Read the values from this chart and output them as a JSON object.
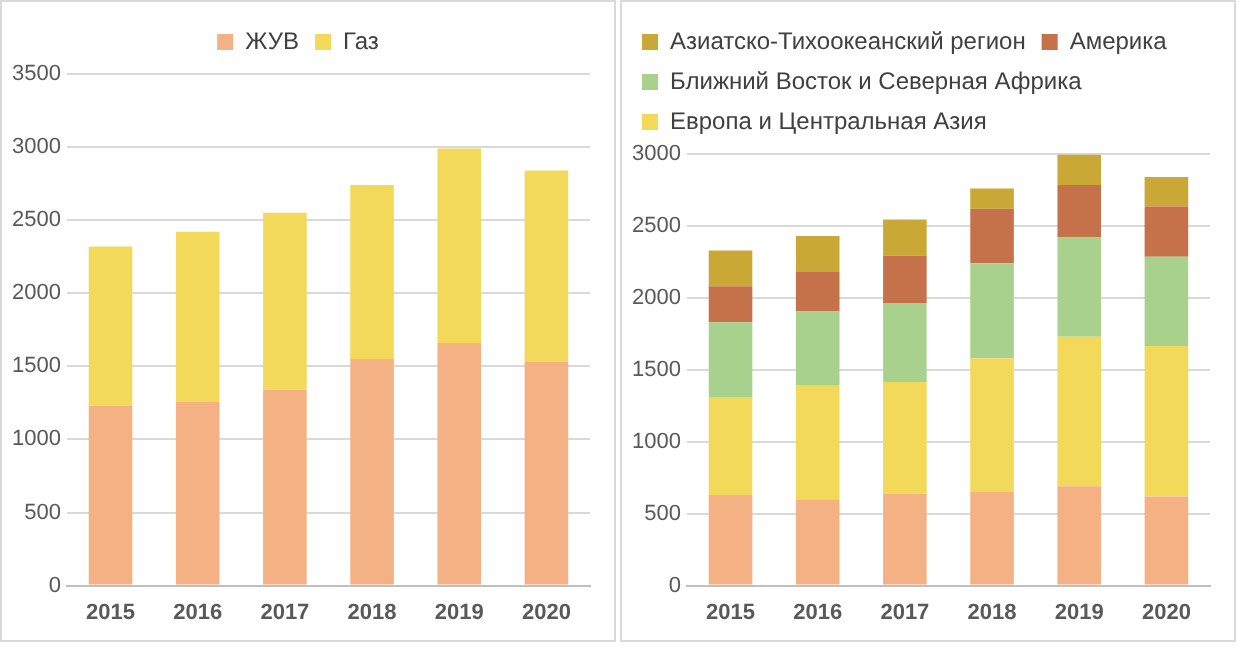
{
  "chart_data": [
    {
      "type": "bar",
      "stacked": true,
      "categories": [
        "2015",
        "2016",
        "2017",
        "2018",
        "2019",
        "2020"
      ],
      "ylim": [
        0,
        3500
      ],
      "yticks": [
        0,
        500,
        1000,
        1500,
        2000,
        2500,
        3000,
        3500
      ],
      "grid": "y",
      "legend": "top",
      "series": [
        {
          "name": "ЖУВ",
          "color": "#f4b183",
          "values": [
            1230,
            1260,
            1340,
            1550,
            1660,
            1530
          ]
        },
        {
          "name": "Газ",
          "color": "#f2d95a",
          "values": [
            1090,
            1160,
            1210,
            1190,
            1330,
            1310
          ]
        }
      ]
    },
    {
      "type": "bar",
      "stacked": true,
      "categories": [
        "2015",
        "2016",
        "2017",
        "2018",
        "2019",
        "2020"
      ],
      "ylim": [
        0,
        3000
      ],
      "yticks": [
        0,
        500,
        1000,
        1500,
        2000,
        2500,
        3000
      ],
      "grid": "y",
      "legend": "top",
      "series": [
        {
          "color": "#f4b183",
          "values": [
            630,
            600,
            640,
            650,
            690,
            620
          ]
        },
        {
          "name": "Европа и Центральная Азия",
          "color": "#f2d95a",
          "values": [
            675,
            790,
            775,
            930,
            1040,
            1045
          ]
        },
        {
          "name": "Ближний Восток и Северная Африка",
          "color": "#a9d18e",
          "values": [
            525,
            515,
            550,
            660,
            690,
            620
          ]
        },
        {
          "name": "Америка",
          "color": "#c5714a",
          "values": [
            250,
            275,
            330,
            380,
            365,
            350
          ]
        },
        {
          "name": "Азиатско-Тихоокеанский регион",
          "color": "#c9a836",
          "values": [
            250,
            250,
            250,
            140,
            210,
            205
          ]
        }
      ]
    }
  ]
}
